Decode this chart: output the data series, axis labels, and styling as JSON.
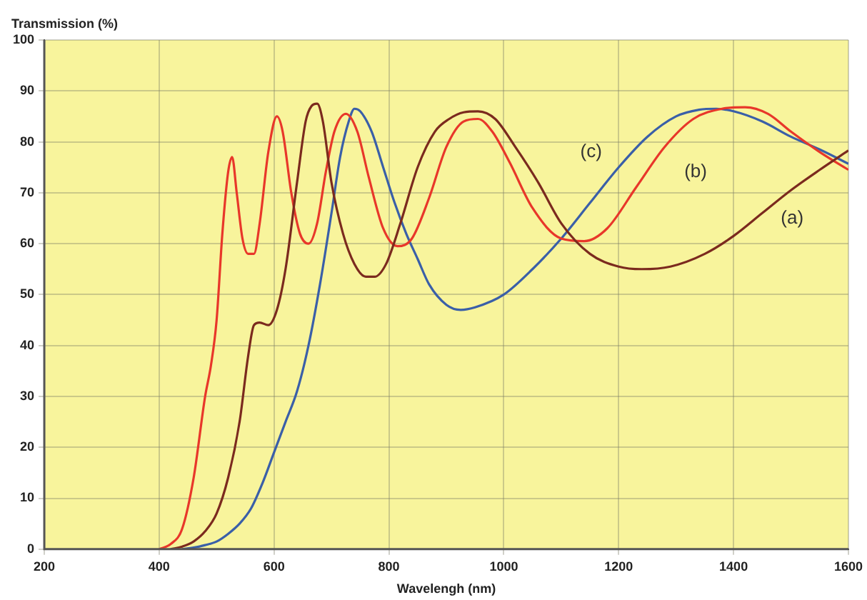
{
  "chart_data": {
    "type": "line",
    "ylabel": "Transmission (%)",
    "xlabel": "Wavelengh (nm)",
    "xlim": [
      200,
      1600
    ],
    "xticks": [
      200,
      400,
      600,
      800,
      1000,
      1200,
      1400,
      1600
    ],
    "ylim": [
      0,
      100
    ],
    "yticks": [
      0,
      10,
      20,
      30,
      40,
      50,
      60,
      70,
      80,
      90,
      100
    ],
    "grid": true,
    "legend": false,
    "marker": "none",
    "line_style": "solid",
    "series": [
      {
        "name": "(a)",
        "color": "#7b2a1e",
        "x": [
          420,
          440,
          460,
          480,
          500,
          520,
          540,
          555,
          565,
          575,
          590,
          605,
          620,
          640,
          655,
          665,
          675,
          685,
          700,
          720,
          740,
          760,
          775,
          795,
          820,
          850,
          880,
          905,
          930,
          955,
          985,
          1020,
          1060,
          1100,
          1150,
          1200,
          1240,
          1290,
          1350,
          1400,
          1450,
          1500,
          1550,
          1600
        ],
        "values": [
          0,
          0.5,
          1.5,
          3.5,
          7,
          14,
          25,
          38,
          44,
          44.5,
          44,
          47,
          55,
          72,
          84,
          87,
          87.5,
          84,
          72,
          62,
          56,
          53.5,
          53.5,
          56,
          64,
          75,
          82,
          84.5,
          85.8,
          86,
          84.5,
          79,
          72,
          64,
          58,
          55.5,
          55,
          55.5,
          58,
          61.5,
          66,
          70.5,
          74.5,
          78.3
        ]
      },
      {
        "name": "(b)",
        "color": "#e8372a",
        "x": [
          400,
          420,
          440,
          460,
          480,
          490,
          500,
          510,
          520,
          527,
          535,
          545,
          555,
          565,
          575,
          590,
          605,
          615,
          630,
          645,
          660,
          675,
          690,
          705,
          725,
          745,
          765,
          790,
          815,
          840,
          870,
          900,
          930,
          955,
          980,
          1010,
          1050,
          1100,
          1140,
          1180,
          1230,
          1280,
          1330,
          1380,
          1420,
          1460,
          1500,
          1550,
          1600
        ],
        "values": [
          0,
          1,
          4,
          14,
          30,
          36,
          45,
          62,
          74,
          77,
          70,
          61,
          58,
          58,
          64,
          78,
          85,
          82,
          70,
          62,
          60,
          64,
          74,
          82,
          85.5,
          82,
          73,
          63,
          59.5,
          61,
          69,
          79,
          84,
          84.5,
          82,
          76,
          67,
          61,
          60.5,
          63,
          71,
          79,
          84.5,
          86.5,
          86.8,
          85.5,
          82,
          78,
          74.5
        ]
      },
      {
        "name": "(c)",
        "color": "#3a5fa8",
        "x": [
          440,
          460,
          480,
          500,
          520,
          540,
          560,
          580,
          600,
          620,
          640,
          660,
          680,
          700,
          715,
          730,
          740,
          750,
          770,
          790,
          810,
          830,
          850,
          870,
          900,
          925,
          950,
          1000,
          1050,
          1100,
          1150,
          1200,
          1250,
          1300,
          1340,
          1370,
          1400,
          1450,
          1500,
          1550,
          1600
        ],
        "values": [
          0,
          0.3,
          0.8,
          1.5,
          3,
          5,
          8,
          13,
          19,
          25,
          31,
          40,
          52,
          66,
          77,
          84,
          86.5,
          86,
          82,
          75,
          68,
          62,
          57,
          52,
          48,
          47,
          47.5,
          50,
          55,
          61,
          68,
          75,
          81,
          85,
          86.3,
          86.5,
          86,
          84,
          81,
          78.5,
          75.7
        ]
      }
    ]
  }
}
